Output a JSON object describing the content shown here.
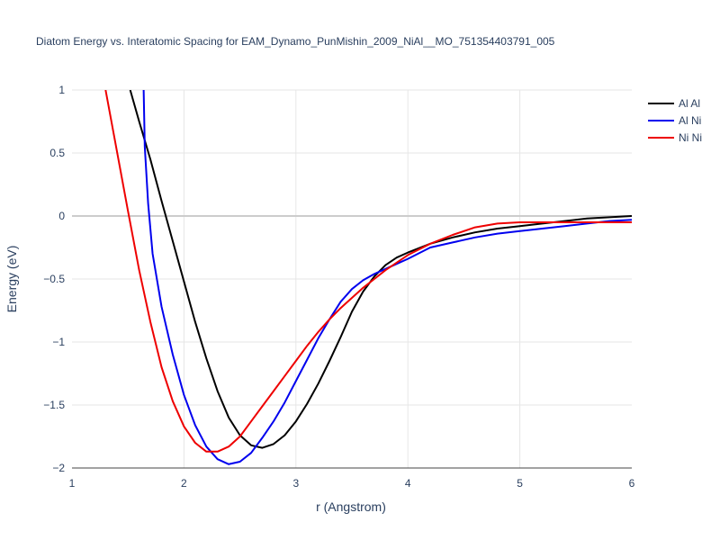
{
  "chart_data": {
    "type": "line",
    "title": "Diatom Energy vs. Interatomic Spacing for EAM_Dynamo_PunMishin_2009_NiAl__MO_751354403791_005",
    "xlabel": "r (Angstrom)",
    "ylabel": "Energy (eV)",
    "xlim": [
      1,
      6
    ],
    "ylim": [
      -2,
      1
    ],
    "x_ticks": [
      "1",
      "2",
      "3",
      "4",
      "5",
      "6"
    ],
    "y_ticks": [
      "1",
      "0.5",
      "0",
      "−0.5",
      "−1",
      "−1.5",
      "−2"
    ],
    "grid": true,
    "legend_position": "top-right",
    "series": [
      {
        "name": "Al Al",
        "color": "#000000",
        "x": [
          1.52,
          1.6,
          1.7,
          1.8,
          1.9,
          2.0,
          2.1,
          2.2,
          2.3,
          2.4,
          2.5,
          2.6,
          2.7,
          2.8,
          2.9,
          3.0,
          3.1,
          3.2,
          3.3,
          3.4,
          3.5,
          3.6,
          3.7,
          3.8,
          3.9,
          4.0,
          4.2,
          4.4,
          4.6,
          4.8,
          5.0,
          5.2,
          5.4,
          5.6,
          5.8,
          6.0
        ],
        "values": [
          1.0,
          0.75,
          0.45,
          0.12,
          -0.2,
          -0.52,
          -0.84,
          -1.13,
          -1.39,
          -1.6,
          -1.74,
          -1.82,
          -1.84,
          -1.81,
          -1.74,
          -1.63,
          -1.49,
          -1.33,
          -1.15,
          -0.96,
          -0.76,
          -0.6,
          -0.48,
          -0.39,
          -0.33,
          -0.29,
          -0.22,
          -0.17,
          -0.13,
          -0.1,
          -0.08,
          -0.06,
          -0.04,
          -0.02,
          -0.01,
          0.0
        ]
      },
      {
        "name": "Al Ni",
        "color": "#0000ee",
        "x": [
          1.64,
          1.65,
          1.68,
          1.72,
          1.8,
          1.9,
          2.0,
          2.1,
          2.2,
          2.3,
          2.4,
          2.5,
          2.6,
          2.7,
          2.8,
          2.9,
          3.0,
          3.1,
          3.2,
          3.3,
          3.4,
          3.5,
          3.6,
          3.7,
          3.8,
          3.9,
          4.0,
          4.2,
          4.4,
          4.6,
          4.8,
          5.0,
          5.2,
          5.4,
          5.6,
          5.8,
          6.0
        ],
        "values": [
          1.0,
          0.55,
          0.1,
          -0.3,
          -0.72,
          -1.1,
          -1.42,
          -1.66,
          -1.83,
          -1.93,
          -1.97,
          -1.95,
          -1.88,
          -1.76,
          -1.63,
          -1.48,
          -1.31,
          -1.14,
          -0.97,
          -0.82,
          -0.68,
          -0.58,
          -0.51,
          -0.46,
          -0.42,
          -0.38,
          -0.34,
          -0.25,
          -0.21,
          -0.17,
          -0.14,
          -0.12,
          -0.1,
          -0.08,
          -0.06,
          -0.04,
          -0.03
        ]
      },
      {
        "name": "Ni Ni",
        "color": "#ee0000",
        "x": [
          1.3,
          1.4,
          1.5,
          1.6,
          1.7,
          1.8,
          1.9,
          2.0,
          2.1,
          2.2,
          2.3,
          2.4,
          2.5,
          2.6,
          2.7,
          2.8,
          2.9,
          3.0,
          3.1,
          3.2,
          3.3,
          3.4,
          3.5,
          3.6,
          3.7,
          3.8,
          3.9,
          4.0,
          4.2,
          4.4,
          4.6,
          4.8,
          5.0,
          5.2,
          5.4,
          5.6,
          5.8,
          6.0
        ],
        "values": [
          1.0,
          0.52,
          0.04,
          -0.43,
          -0.84,
          -1.2,
          -1.47,
          -1.67,
          -1.8,
          -1.87,
          -1.87,
          -1.83,
          -1.75,
          -1.63,
          -1.51,
          -1.39,
          -1.27,
          -1.15,
          -1.03,
          -0.92,
          -0.82,
          -0.73,
          -0.65,
          -0.57,
          -0.5,
          -0.43,
          -0.37,
          -0.31,
          -0.22,
          -0.15,
          -0.09,
          -0.06,
          -0.05,
          -0.05,
          -0.05,
          -0.05,
          -0.05,
          -0.05
        ]
      }
    ]
  }
}
